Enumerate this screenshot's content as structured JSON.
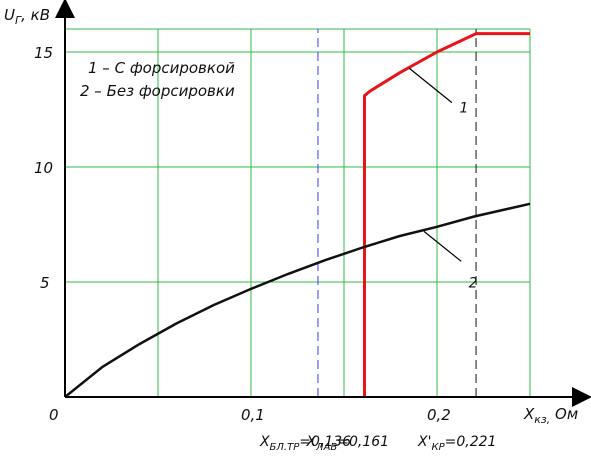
{
  "chart_data": {
    "type": "line",
    "ylabel_main": "U",
    "ylabel_sub": "Г",
    "ylabel_unit": ", кВ",
    "xlabel_main": "X",
    "xlabel_sub": "кз,",
    "xlabel_unit": " Ом",
    "xlim": [
      0,
      0.25
    ],
    "ylim": [
      0,
      16
    ],
    "x_ticks": [
      {
        "value": 0,
        "label": "0"
      },
      {
        "value": 0.1,
        "label": "0,1"
      },
      {
        "value": 0.2,
        "label": "0,2"
      }
    ],
    "y_ticks": [
      {
        "value": 5,
        "label": "5"
      },
      {
        "value": 10,
        "label": "10"
      },
      {
        "value": 15,
        "label": "15"
      }
    ],
    "grid": true,
    "legend": [
      {
        "text": "1 – С форсировкой"
      },
      {
        "text": "2 – Без форсировки"
      }
    ],
    "series": [
      {
        "id": "1",
        "color": "#e8141a",
        "points": [
          [
            0.161,
            0
          ],
          [
            0.161,
            13.1
          ],
          [
            0.164,
            13.3
          ],
          [
            0.18,
            14.1
          ],
          [
            0.2,
            15.0
          ],
          [
            0.221,
            15.8
          ],
          [
            0.25,
            15.8
          ]
        ]
      },
      {
        "id": "2",
        "color": "#111111",
        "points": [
          [
            0,
            0
          ],
          [
            0.02,
            1.3
          ],
          [
            0.04,
            2.3
          ],
          [
            0.06,
            3.2
          ],
          [
            0.08,
            4.0
          ],
          [
            0.1,
            4.7
          ],
          [
            0.12,
            5.35
          ],
          [
            0.14,
            5.95
          ],
          [
            0.16,
            6.5
          ],
          [
            0.18,
            7.0
          ],
          [
            0.2,
            7.4
          ],
          [
            0.22,
            7.85
          ],
          [
            0.25,
            8.4
          ]
        ]
      }
    ],
    "series_labels": [
      {
        "text": "1",
        "series": "1"
      },
      {
        "text": "2",
        "series": "2"
      }
    ],
    "markers": [
      {
        "x": 0.136,
        "color": "#3a3aff",
        "label_main": "X",
        "label_sub": "БЛ.ТР",
        "label_value": "=0,136"
      },
      {
        "x": 0.221,
        "color": "#111111",
        "label_main": "X'",
        "label_sub": "КР",
        "label_value": "=0,221"
      },
      {
        "x": 0.161,
        "color": "#111111",
        "label_main": "X",
        "label_sub": "ЛАВ",
        "label_value": "=0,161"
      }
    ]
  }
}
